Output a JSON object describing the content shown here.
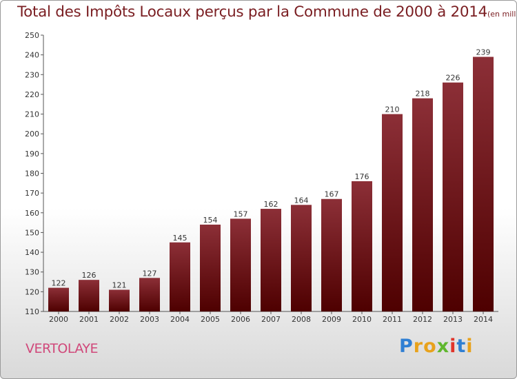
{
  "title": {
    "main": "Total des Impôts Locaux perçus par la Commune de 2000 à 2014",
    "unit": "(en milliers d'€)"
  },
  "commune": "VERTOLAYE",
  "logo": {
    "letters": [
      "P",
      "r",
      "o",
      "x",
      "i",
      "t",
      "i"
    ],
    "colors": [
      "#2f7fd3",
      "#e8a21c",
      "#e8a21c",
      "#5fb72e",
      "#e0342a",
      "#2f7fd3",
      "#e8a21c"
    ]
  },
  "colors": {
    "bar_top": "#8c2f37",
    "bar_bottom": "#4e0000",
    "title": "#7a1e22",
    "commune": "#d0487a"
  },
  "chart_data": {
    "type": "bar",
    "title": "Total des Impôts Locaux perçus par la Commune de 2000 à 2014",
    "categories": [
      "2000",
      "2001",
      "2002",
      "2003",
      "2004",
      "2005",
      "2006",
      "2007",
      "2008",
      "2009",
      "2010",
      "2011",
      "2012",
      "2013",
      "2014"
    ],
    "values": [
      122,
      126,
      121,
      127,
      145,
      154,
      157,
      162,
      164,
      167,
      176,
      210,
      218,
      226,
      239
    ],
    "ylim": [
      110,
      250
    ],
    "yticks": [
      110,
      120,
      130,
      140,
      150,
      160,
      170,
      180,
      190,
      200,
      210,
      220,
      230,
      240,
      250
    ],
    "grid": false,
    "data_labels": true
  }
}
